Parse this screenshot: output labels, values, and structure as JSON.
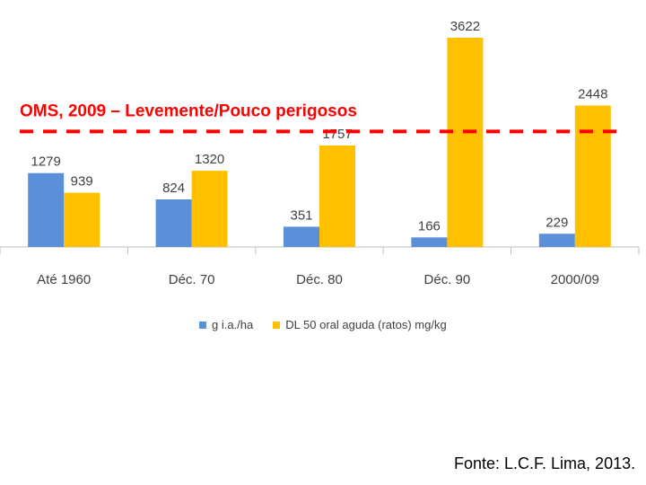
{
  "colors": {
    "series1": "#5B8FD8",
    "series2": "#FFC000",
    "reference_line": "#FF0000",
    "axis": "#BFBFBF",
    "label": "#404040"
  },
  "chart_data": {
    "type": "bar",
    "categories": [
      "Até 1960",
      "Déc. 70",
      "Déc. 80",
      "Déc. 90",
      "2000/09"
    ],
    "series": [
      {
        "name": "g i.a./ha",
        "values": [
          1279,
          824,
          351,
          166,
          229
        ]
      },
      {
        "name": "DL 50 oral aguda (ratos) mg/kg",
        "values": [
          939,
          1320,
          1757,
          3622,
          2448
        ]
      }
    ],
    "data_labels": [
      [
        "1279",
        "824",
        "351",
        "166",
        "229"
      ],
      [
        "939",
        "1320",
        "1757",
        "3622",
        "2448"
      ]
    ],
    "reference_line": {
      "value": 2000,
      "label": "OMS,  2009 – Levemente/Pouco perigosos",
      "style": "dashed"
    },
    "ylim": [
      0,
      3622
    ],
    "legend_position": "bottom",
    "grid": false
  },
  "source_text": "Fonte: L.C.F. Lima, 2013."
}
